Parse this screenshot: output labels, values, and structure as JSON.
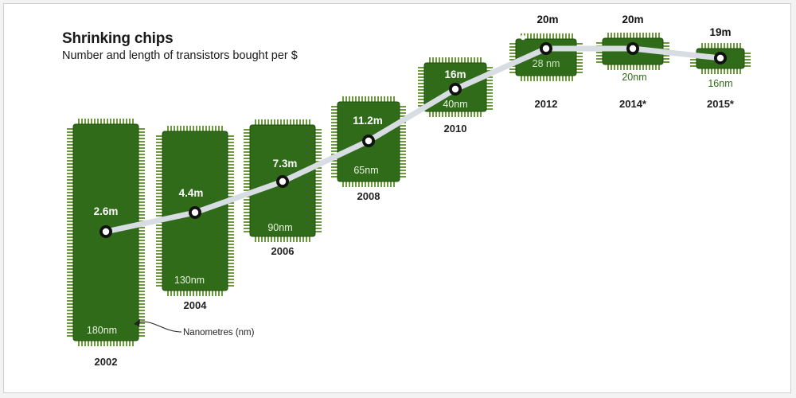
{
  "chart_data": {
    "type": "line",
    "title": "Shrinking chips",
    "subtitle": "Number and length of transistors bought per $",
    "annotation": "Nanometres (nm)",
    "series": [
      {
        "x": [
          "2002",
          "2004",
          "2006",
          "2008",
          "2010",
          "2012",
          "2014*",
          "2015*"
        ],
        "transistors_m": [
          2.6,
          4.4,
          7.3,
          11.2,
          16,
          20,
          20,
          19
        ],
        "transistor_labels": [
          "2.6m",
          "4.4m",
          "7.3m",
          "11.2m",
          "16m",
          "20m",
          "20m",
          "19m"
        ],
        "node_nm": [
          180,
          130,
          90,
          65,
          40,
          28,
          20,
          16
        ],
        "node_labels": [
          "180nm",
          "130nm",
          "90nm",
          "65nm",
          "40nm",
          "28 nm",
          "20nm",
          "16nm"
        ]
      }
    ],
    "colors": {
      "chip": "#2f6b18",
      "chip_dark": "#1f4f0d",
      "pins": "#6a9a3a",
      "line": "#d7dde3",
      "marker_fill": "#ffffff",
      "marker_ring": "#111111"
    }
  }
}
